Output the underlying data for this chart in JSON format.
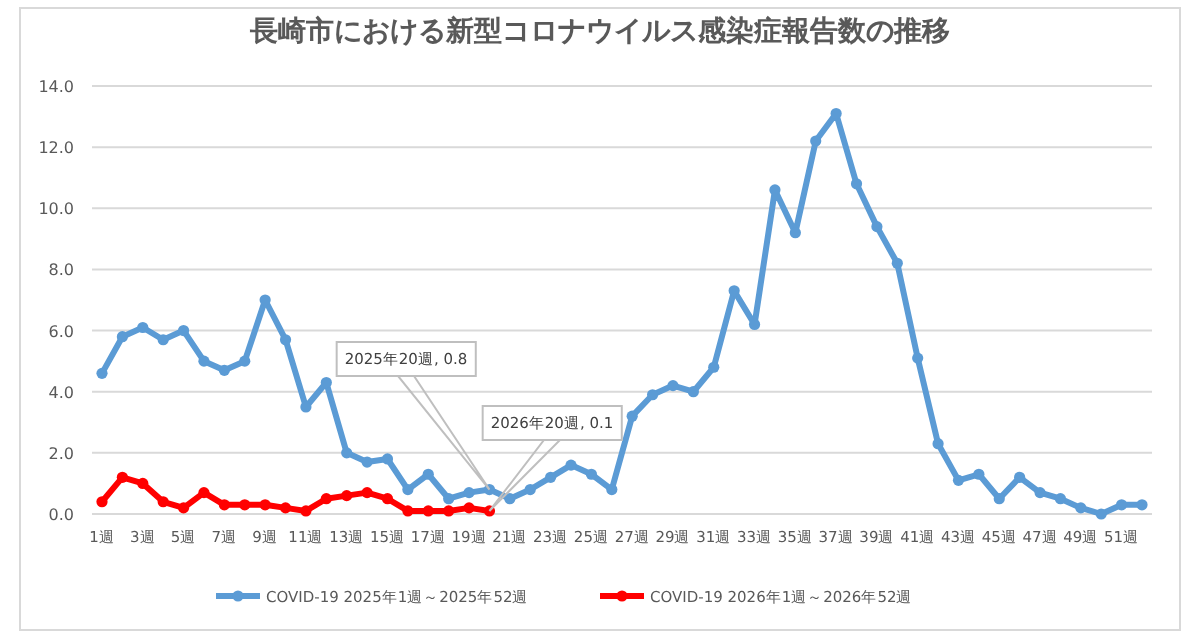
{
  "chart_data": {
    "type": "line",
    "title": "長崎市における新型コロナウイルス感染症報告数の推移",
    "categories": [
      "1週",
      null,
      "3週",
      null,
      "5週",
      null,
      "7週",
      null,
      "9週",
      null,
      "11週",
      null,
      "13週",
      null,
      "15週",
      null,
      "17週",
      null,
      "19週",
      null,
      "21週",
      null,
      "23週",
      null,
      "25週",
      null,
      "27週",
      null,
      "29週",
      null,
      "31週",
      null,
      "33週",
      null,
      "35週",
      null,
      "37週",
      null,
      "39週",
      null,
      "41週",
      null,
      "43週",
      null,
      "45週",
      null,
      "47週",
      null,
      "49週",
      null,
      "51週",
      null
    ],
    "series": [
      {
        "name": "COVID-19 2025年1週～2025年52週",
        "color": "#5b9bd5",
        "values": [
          4.6,
          5.8,
          6.1,
          5.7,
          6.0,
          5.0,
          4.7,
          5.0,
          7.0,
          5.7,
          3.5,
          4.3,
          2.0,
          1.7,
          1.8,
          0.8,
          1.3,
          0.5,
          0.7,
          0.8,
          0.5,
          0.8,
          1.2,
          1.6,
          1.3,
          0.8,
          3.2,
          3.9,
          4.2,
          4.0,
          4.8,
          7.3,
          6.2,
          10.6,
          9.2,
          12.2,
          13.1,
          10.8,
          9.4,
          8.2,
          5.1,
          2.3,
          1.1,
          1.3,
          0.5,
          1.2,
          0.7,
          0.5,
          0.2,
          0.0,
          0.3,
          0.3
        ]
      },
      {
        "name": "COVID-19 2026年1週～2026年52週",
        "color": "#ff0000",
        "values": [
          0.4,
          1.2,
          1.0,
          0.4,
          0.2,
          0.7,
          0.3,
          0.3,
          0.3,
          0.2,
          0.1,
          0.5,
          0.6,
          0.7,
          0.5,
          0.1,
          0.1,
          0.1,
          0.2,
          0.1,
          null,
          null,
          null,
          null,
          null,
          null,
          null,
          null,
          null,
          null,
          null,
          null,
          null,
          null,
          null,
          null,
          null,
          null,
          null,
          null,
          null,
          null,
          null,
          null,
          null,
          null,
          null,
          null,
          null,
          null,
          null,
          null
        ]
      }
    ],
    "ylim": [
      0,
      14
    ],
    "yticks": [
      {
        "value": 0,
        "label": "0.0"
      },
      {
        "value": 2,
        "label": "2.0"
      },
      {
        "value": 4,
        "label": "4.0"
      },
      {
        "value": 6,
        "label": "6.0"
      },
      {
        "value": 8,
        "label": "8.0"
      },
      {
        "value": 10,
        "label": "10.0"
      },
      {
        "value": 12,
        "label": "12.0"
      },
      {
        "value": 14,
        "label": "14.0"
      }
    ],
    "annotations": [
      "2025年20週, 0.8",
      "2026年20週, 0.1"
    ],
    "grid": "y",
    "legend": "bottom",
    "marker": "circle",
    "line_style": "solid"
  }
}
